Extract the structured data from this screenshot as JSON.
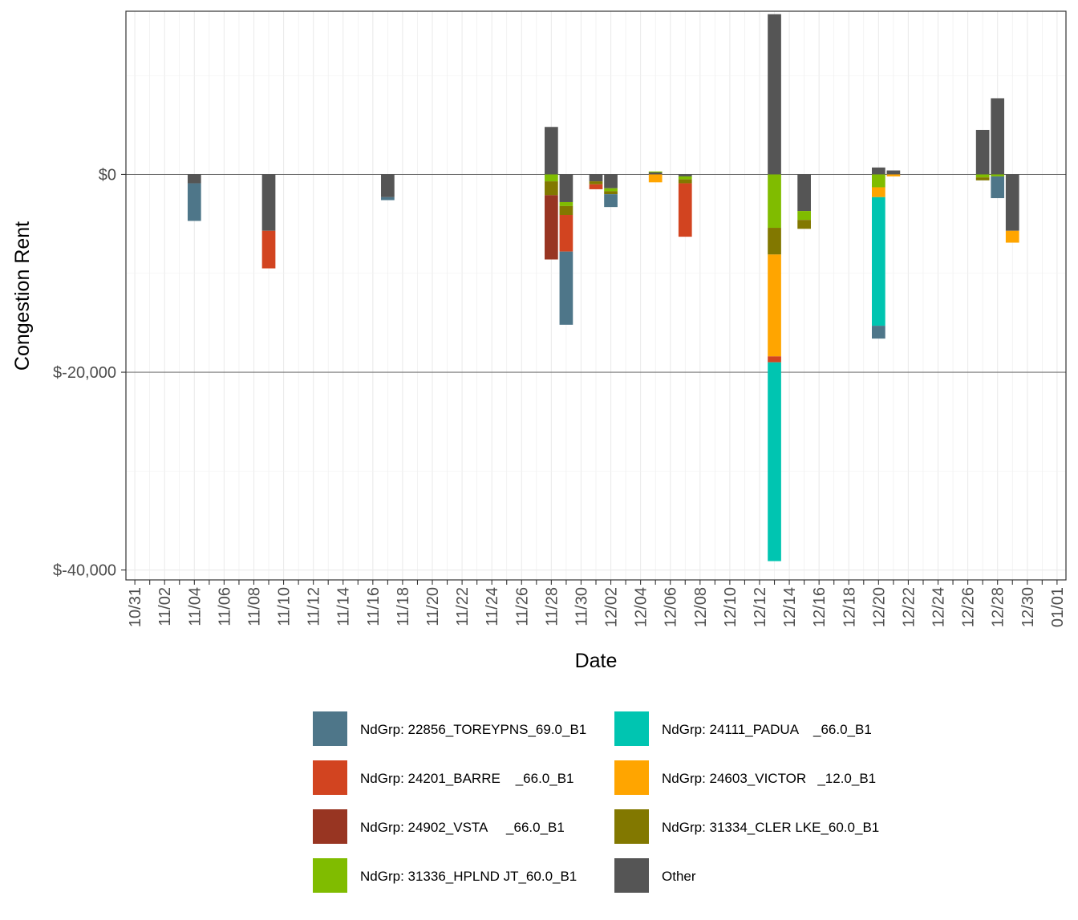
{
  "chart_data": {
    "type": "bar",
    "stacked": true,
    "title": "",
    "xlabel": "Date",
    "ylabel": "Congestion Rent",
    "ylim": [
      -41000,
      16500
    ],
    "y_ticks": [
      {
        "value": 0,
        "label": "$0"
      },
      {
        "value": -20000,
        "label": "$-20,000"
      },
      {
        "value": -40000,
        "label": "$-40,000"
      }
    ],
    "x_range_days": [
      -0.6,
      62.6
    ],
    "x_tick_labels": [
      "10/31",
      "11/02",
      "11/04",
      "11/06",
      "11/08",
      "11/10",
      "11/12",
      "11/14",
      "11/16",
      "11/18",
      "11/20",
      "11/22",
      "11/24",
      "11/26",
      "11/28",
      "11/30",
      "12/02",
      "12/04",
      "12/06",
      "12/08",
      "12/10",
      "12/12",
      "12/14",
      "12/16",
      "12/18",
      "12/20",
      "12/22",
      "12/24",
      "12/26",
      "12/28",
      "12/30",
      "01/01"
    ],
    "grid": true,
    "legend_position": "bottom",
    "series": [
      {
        "key": "toreypns",
        "name": "NdGrp: 22856_TOREYPNS_69.0_B1",
        "color": "#4E7689"
      },
      {
        "key": "padua",
        "name": "NdGrp: 24111_PADUA    _66.0_B1",
        "color": "#00C5B1"
      },
      {
        "key": "barre",
        "name": "NdGrp: 24201_BARRE    _66.0_B1",
        "color": "#D24420"
      },
      {
        "key": "victor",
        "name": "NdGrp: 24603_VICTOR   _12.0_B1",
        "color": "#FFA500"
      },
      {
        "key": "vsta",
        "name": "NdGrp: 24902_VSTA     _66.0_B1",
        "color": "#983522"
      },
      {
        "key": "clerlke",
        "name": "NdGrp: 31334_CLER LKE_60.0_B1",
        "color": "#827800"
      },
      {
        "key": "hplnd",
        "name": "NdGrp: 31336_HPLND JT_60.0_B1",
        "color": "#80BC00"
      },
      {
        "key": "other",
        "name": "Other",
        "color": "#555555"
      }
    ],
    "bars": [
      {
        "date": "11/04",
        "day": 4,
        "stack": [
          {
            "s": "other",
            "v": -900
          },
          {
            "s": "toreypns",
            "v": -3800
          }
        ]
      },
      {
        "date": "11/09",
        "day": 9,
        "stack": [
          {
            "s": "other",
            "v": -5700
          },
          {
            "s": "barre",
            "v": -3800
          }
        ]
      },
      {
        "date": "11/17",
        "day": 17,
        "stack": [
          {
            "s": "other",
            "v": -2300
          },
          {
            "s": "toreypns",
            "v": -300
          }
        ]
      },
      {
        "date": "11/28",
        "day": 28,
        "stack": [
          {
            "s": "other",
            "v": 4800
          },
          {
            "s": "hplnd",
            "v": -700
          },
          {
            "s": "clerlke",
            "v": -1400
          },
          {
            "s": "vsta",
            "v": -6500
          }
        ]
      },
      {
        "date": "11/29",
        "day": 29,
        "stack": [
          {
            "s": "other",
            "v": -2800
          },
          {
            "s": "hplnd",
            "v": -400
          },
          {
            "s": "clerlke",
            "v": -900
          },
          {
            "s": "barre",
            "v": -3700
          },
          {
            "s": "toreypns",
            "v": -7400
          }
        ]
      },
      {
        "date": "12/01",
        "day": 31,
        "stack": [
          {
            "s": "other",
            "v": -700
          },
          {
            "s": "clerlke",
            "v": -300
          },
          {
            "s": "barre",
            "v": -500
          }
        ]
      },
      {
        "date": "12/02",
        "day": 32,
        "stack": [
          {
            "s": "other",
            "v": -1400
          },
          {
            "s": "hplnd",
            "v": -300
          },
          {
            "s": "clerlke",
            "v": -300
          },
          {
            "s": "toreypns",
            "v": -1300
          }
        ]
      },
      {
        "date": "12/05",
        "day": 35,
        "stack": [
          {
            "s": "other",
            "v": 200
          },
          {
            "s": "hplnd",
            "v": 100
          },
          {
            "s": "victor",
            "v": -800
          }
        ]
      },
      {
        "date": "12/07",
        "day": 37,
        "stack": [
          {
            "s": "other",
            "v": -200
          },
          {
            "s": "hplnd",
            "v": -300
          },
          {
            "s": "clerlke",
            "v": -400
          },
          {
            "s": "barre",
            "v": -5400
          }
        ]
      },
      {
        "date": "12/13",
        "day": 43,
        "stack": [
          {
            "s": "other",
            "v": 16200
          },
          {
            "s": "hplnd",
            "v": -5400
          },
          {
            "s": "clerlke",
            "v": -2700
          },
          {
            "s": "victor",
            "v": -10300
          },
          {
            "s": "barre",
            "v": -600
          },
          {
            "s": "padua",
            "v": -20100
          }
        ]
      },
      {
        "date": "12/15",
        "day": 45,
        "stack": [
          {
            "s": "other",
            "v": -3700
          },
          {
            "s": "hplnd",
            "v": -900
          },
          {
            "s": "clerlke",
            "v": -900
          }
        ]
      },
      {
        "date": "12/20",
        "day": 50,
        "stack": [
          {
            "s": "other",
            "v": 700
          },
          {
            "s": "hplnd",
            "v": -1300
          },
          {
            "s": "victor",
            "v": -1000
          },
          {
            "s": "padua",
            "v": -13000
          },
          {
            "s": "toreypns",
            "v": -1300
          }
        ]
      },
      {
        "date": "12/21",
        "day": 51,
        "stack": [
          {
            "s": "other",
            "v": 400
          },
          {
            "s": "victor",
            "v": -200
          }
        ]
      },
      {
        "date": "12/27",
        "day": 57,
        "stack": [
          {
            "s": "other",
            "v": 4500
          },
          {
            "s": "hplnd",
            "v": -300
          },
          {
            "s": "clerlke",
            "v": -300
          }
        ]
      },
      {
        "date": "12/28",
        "day": 58,
        "stack": [
          {
            "s": "other",
            "v": 7700
          },
          {
            "s": "hplnd",
            "v": -200
          },
          {
            "s": "toreypns",
            "v": -2200
          }
        ]
      },
      {
        "date": "12/29",
        "day": 59,
        "stack": [
          {
            "s": "other",
            "v": -5700
          },
          {
            "s": "victor",
            "v": -1200
          }
        ]
      }
    ]
  }
}
